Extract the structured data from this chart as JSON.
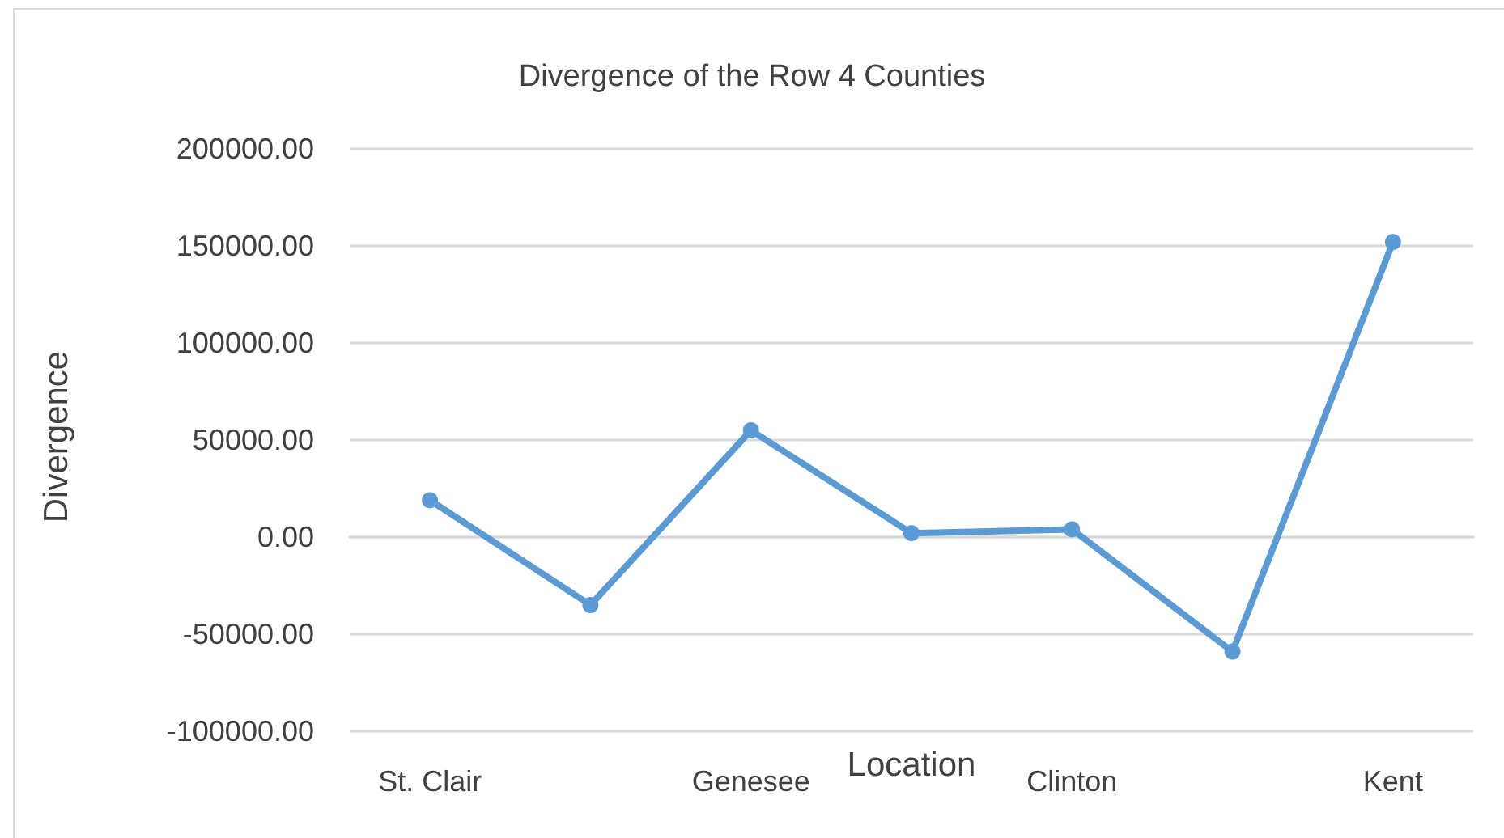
{
  "chart_data": {
    "type": "line",
    "title": "Divergence of the Row 4 Counties",
    "xlabel": "Location",
    "ylabel": "Divergence",
    "categories": [
      "St. Clair",
      null,
      "Genesee",
      null,
      "Clinton",
      null,
      "Kent"
    ],
    "values": [
      19000,
      -35000,
      55000,
      2000,
      4000,
      -59000,
      152000
    ],
    "color": "#5b9bd5",
    "ylim": [
      -100000,
      200000
    ],
    "yticks": [
      {
        "value": -100000,
        "label": "-100000.00"
      },
      {
        "value": -50000,
        "label": "-50000.00"
      },
      {
        "value": 0,
        "label": "0.00"
      },
      {
        "value": 50000,
        "label": "50000.00"
      },
      {
        "value": 100000,
        "label": "100000.00"
      },
      {
        "value": 150000,
        "label": "150000.00"
      },
      {
        "value": 200000,
        "label": "200000.00"
      }
    ],
    "grid": "y",
    "marker": "circle",
    "line_style": "solid"
  }
}
